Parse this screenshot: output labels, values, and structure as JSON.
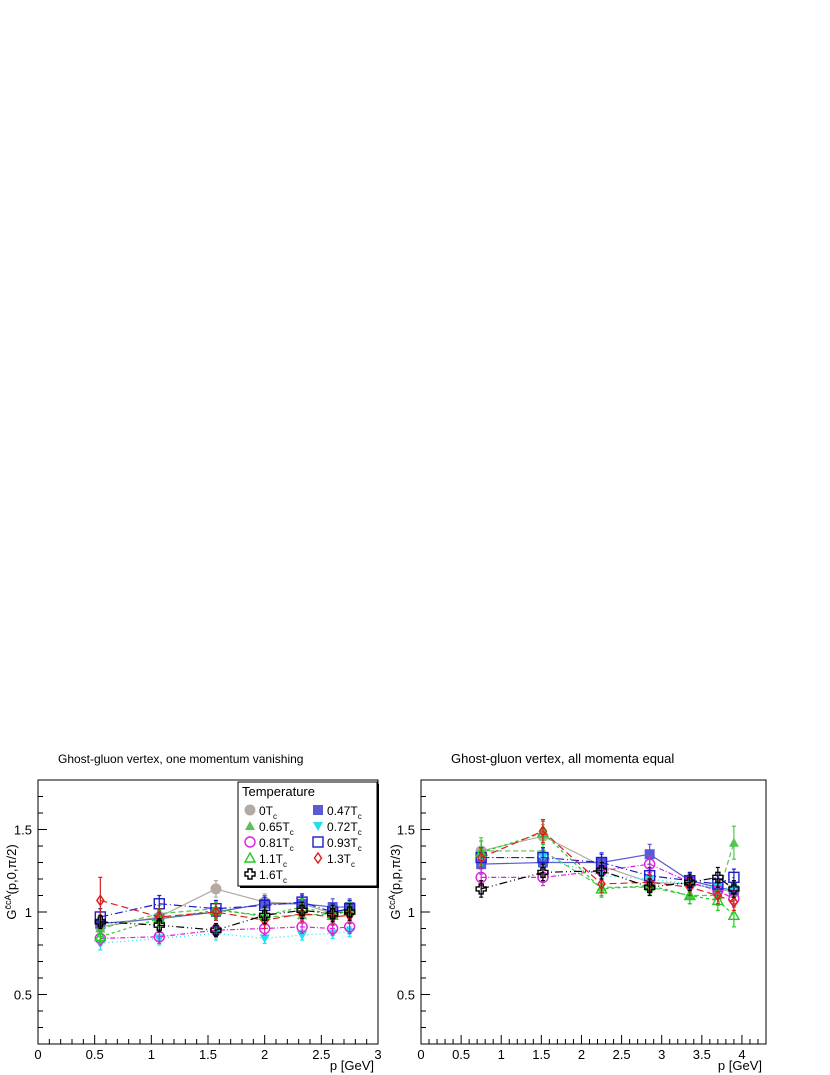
{
  "chart_data": [
    {
      "type": "scatter",
      "title": "Ghost-gluon vertex, one momentum vanishing",
      "xlabel": "p [GeV]",
      "ylabel": "G^{c̄cA}(p,0,π/2)",
      "xlim": [
        0,
        3.0
      ],
      "ylim": [
        0.2,
        1.8
      ],
      "xticks": [
        "0",
        "0.5",
        "1",
        "1.5",
        "2",
        "2.5",
        "3"
      ],
      "yticks": [
        "0.5",
        "1",
        "1.5"
      ],
      "grid": false,
      "legend": "top-right",
      "series": [
        {
          "key": "t0",
          "x": [
            0.55,
            1.07,
            1.57,
            2.0,
            2.33,
            2.6,
            2.75
          ],
          "y": [
            0.91,
            0.97,
            1.14,
            1.06,
            1.05,
            0.99,
            1.02
          ],
          "err": [
            0.04,
            0.05,
            0.05,
            0.05,
            0.04,
            0.05,
            0.05
          ]
        },
        {
          "key": "t47",
          "x": [
            0.55,
            1.07,
            1.57,
            2.0,
            2.33,
            2.6,
            2.75
          ],
          "y": [
            0.93,
            0.96,
            1.0,
            1.05,
            1.05,
            1.03,
            1.03
          ],
          "err": [
            0.05,
            0.05,
            0.05,
            0.05,
            0.05,
            0.05,
            0.05
          ]
        },
        {
          "key": "t65",
          "x": [
            0.55,
            1.07,
            1.57,
            2.0,
            2.33,
            2.6,
            2.75
          ],
          "y": [
            0.9,
            0.99,
            1.02,
            0.97,
            0.98,
            0.99,
            1.01
          ],
          "err": [
            0.05,
            0.05,
            0.05,
            0.05,
            0.05,
            0.05,
            0.05
          ]
        },
        {
          "key": "t72",
          "x": [
            0.55,
            1.07,
            1.57,
            2.0,
            2.33,
            2.6,
            2.75
          ],
          "y": [
            0.81,
            0.84,
            0.87,
            0.84,
            0.86,
            0.87,
            0.88
          ],
          "err": [
            0.04,
            0.04,
            0.04,
            0.03,
            0.03,
            0.03,
            0.03
          ]
        },
        {
          "key": "t81",
          "x": [
            0.55,
            1.07,
            1.57,
            2.0,
            2.33,
            2.6,
            2.75
          ],
          "y": [
            0.84,
            0.85,
            0.89,
            0.9,
            0.91,
            0.9,
            0.91
          ],
          "err": [
            0.04,
            0.04,
            0.04,
            0.04,
            0.04,
            0.04,
            0.04
          ]
        },
        {
          "key": "t93",
          "x": [
            0.55,
            1.07,
            1.57,
            2.0,
            2.33,
            2.6,
            2.75
          ],
          "y": [
            0.97,
            1.05,
            1.02,
            1.04,
            1.06,
            1.0,
            1.02
          ],
          "err": [
            0.05,
            0.05,
            0.05,
            0.05,
            0.05,
            0.05,
            0.05
          ]
        },
        {
          "key": "t11",
          "x": [
            0.55,
            1.07,
            1.57,
            2.0,
            2.33,
            2.6,
            2.75
          ],
          "y": [
            0.85,
            0.96,
            1.01,
            0.98,
            1.03,
            0.98,
            1.01
          ],
          "err": [
            0.04,
            0.05,
            0.05,
            0.05,
            0.05,
            0.05,
            0.05
          ]
        },
        {
          "key": "t13",
          "x": [
            0.55,
            1.07,
            1.57,
            2.0,
            2.33,
            2.6,
            2.75
          ],
          "y": [
            1.07,
            0.97,
            1.0,
            0.95,
            0.99,
            0.97,
            0.98
          ],
          "err": [
            0.14,
            0.05,
            0.05,
            0.05,
            0.05,
            0.05,
            0.05
          ]
        },
        {
          "key": "t16",
          "x": [
            0.55,
            1.07,
            1.57,
            2.0,
            2.33,
            2.6,
            2.75
          ],
          "y": [
            0.94,
            0.92,
            0.89,
            0.98,
            1.01,
            0.99,
            1.0
          ],
          "err": [
            0.04,
            0.04,
            0.04,
            0.05,
            0.05,
            0.05,
            0.05
          ]
        }
      ]
    },
    {
      "type": "scatter",
      "title": "Ghost-gluon vertex, all momenta equal",
      "xlabel": "p [GeV]",
      "ylabel": "G^{c̄cA}(p,p,π/3)",
      "xlim": [
        0,
        4.3
      ],
      "ylim": [
        0.2,
        1.8
      ],
      "xticks": [
        "0",
        "0.5",
        "1",
        "1.5",
        "2",
        "2.5",
        "3",
        "3.5",
        "4"
      ],
      "yticks": [
        "0.5",
        "1",
        "1.5"
      ],
      "grid": false,
      "series": [
        {
          "key": "t0",
          "x": [
            0.75,
            1.52,
            2.25,
            2.85,
            3.35,
            3.7,
            3.9
          ],
          "y": [
            1.37,
            1.46,
            1.28,
            1.18,
            1.17,
            1.14,
            1.12
          ],
          "err": [
            0.06,
            0.07,
            0.05,
            0.05,
            0.05,
            0.05,
            0.05
          ]
        },
        {
          "key": "t47",
          "x": [
            0.75,
            1.52,
            2.25,
            2.85,
            3.35,
            3.7,
            3.9
          ],
          "y": [
            1.29,
            1.3,
            1.3,
            1.35,
            1.19,
            1.15,
            1.13
          ],
          "err": [
            0.06,
            0.07,
            0.06,
            0.06,
            0.05,
            0.05,
            0.05
          ]
        },
        {
          "key": "t65",
          "x": [
            0.75,
            1.52,
            2.25,
            2.85,
            3.35,
            3.7,
            3.9
          ],
          "y": [
            1.37,
            1.37,
            1.15,
            1.15,
            1.1,
            1.1,
            1.42
          ],
          "err": [
            0.08,
            0.08,
            0.05,
            0.05,
            0.05,
            0.06,
            0.1
          ]
        },
        {
          "key": "t72",
          "x": [
            0.75,
            1.52,
            2.25,
            2.85,
            3.35,
            3.7,
            3.9
          ],
          "y": [
            1.33,
            1.33,
            1.22,
            1.2,
            1.17,
            1.15,
            1.14
          ],
          "err": [
            0.05,
            0.05,
            0.05,
            0.05,
            0.05,
            0.05,
            0.05
          ]
        },
        {
          "key": "t81",
          "x": [
            0.75,
            1.52,
            2.25,
            2.85,
            3.35,
            3.7,
            3.9
          ],
          "y": [
            1.21,
            1.21,
            1.25,
            1.29,
            1.18,
            1.13,
            1.08
          ],
          "err": [
            0.05,
            0.05,
            0.05,
            0.05,
            0.05,
            0.05,
            0.05
          ]
        },
        {
          "key": "t93",
          "x": [
            0.75,
            1.52,
            2.25,
            2.85,
            3.35,
            3.7,
            3.9
          ],
          "y": [
            1.33,
            1.33,
            1.3,
            1.22,
            1.19,
            1.17,
            1.21
          ],
          "err": [
            0.06,
            0.06,
            0.05,
            0.05,
            0.05,
            0.05,
            0.05
          ]
        },
        {
          "key": "t11",
          "x": [
            0.75,
            1.52,
            2.25,
            2.85,
            3.35,
            3.7,
            3.9
          ],
          "y": [
            1.36,
            1.48,
            1.14,
            1.16,
            1.1,
            1.07,
            0.98
          ],
          "err": [
            0.07,
            0.07,
            0.05,
            0.05,
            0.05,
            0.06,
            0.07
          ]
        },
        {
          "key": "t13",
          "x": [
            0.75,
            1.52,
            2.25,
            2.85,
            3.35,
            3.7,
            3.9
          ],
          "y": [
            1.33,
            1.49,
            1.17,
            1.18,
            1.15,
            1.1,
            1.06
          ],
          "err": [
            0.06,
            0.07,
            0.05,
            0.05,
            0.05,
            0.05,
            0.05
          ]
        },
        {
          "key": "t16",
          "x": [
            0.75,
            1.52,
            2.25,
            2.85,
            3.35,
            3.7,
            3.9
          ],
          "y": [
            1.14,
            1.24,
            1.25,
            1.15,
            1.18,
            1.21,
            1.14
          ],
          "err": [
            0.05,
            0.05,
            0.05,
            0.05,
            0.05,
            0.06,
            0.05
          ]
        }
      ]
    }
  ],
  "legend": {
    "title": "Temperature",
    "entries": [
      {
        "key": "t0",
        "label": "0T",
        "sub": "c"
      },
      {
        "key": "t47",
        "label": "0.47T",
        "sub": "c"
      },
      {
        "key": "t65",
        "label": "0.65T",
        "sub": "c"
      },
      {
        "key": "t72",
        "label": "0.72T",
        "sub": "c"
      },
      {
        "key": "t81",
        "label": "0.81T",
        "sub": "c"
      },
      {
        "key": "t93",
        "label": "0.93T",
        "sub": "c"
      },
      {
        "key": "t11",
        "label": "1.1T",
        "sub": "c"
      },
      {
        "key": "t13",
        "label": "1.3T",
        "sub": "c"
      },
      {
        "key": "t16",
        "label": "1.6T",
        "sub": "c"
      }
    ]
  },
  "styles": {
    "t0": {
      "color": "#b3aaa3",
      "marker": "filled-circle",
      "dash": "none"
    },
    "t47": {
      "color": "#5a5ad2",
      "marker": "filled-square",
      "dash": "none"
    },
    "t65": {
      "color": "#55c455",
      "marker": "filled-triangle",
      "dash": "5,3"
    },
    "t72": {
      "color": "#1ee0ee",
      "marker": "filled-triangle-down",
      "dash": "1,3"
    },
    "t81": {
      "color": "#e01ee0",
      "marker": "open-circle",
      "dash": "5,2,1,2"
    },
    "t93": {
      "color": "#1c1cc8",
      "marker": "open-square",
      "dash": "8,3,1,3"
    },
    "t11": {
      "color": "#22cc22",
      "marker": "open-triangle",
      "dash": "3,3"
    },
    "t13": {
      "color": "#dd1c1c",
      "marker": "open-diamond",
      "dash": "7,4"
    },
    "t16": {
      "color": "#000000",
      "marker": "open-cross",
      "dash": "8,3,1,3,1,3"
    }
  }
}
